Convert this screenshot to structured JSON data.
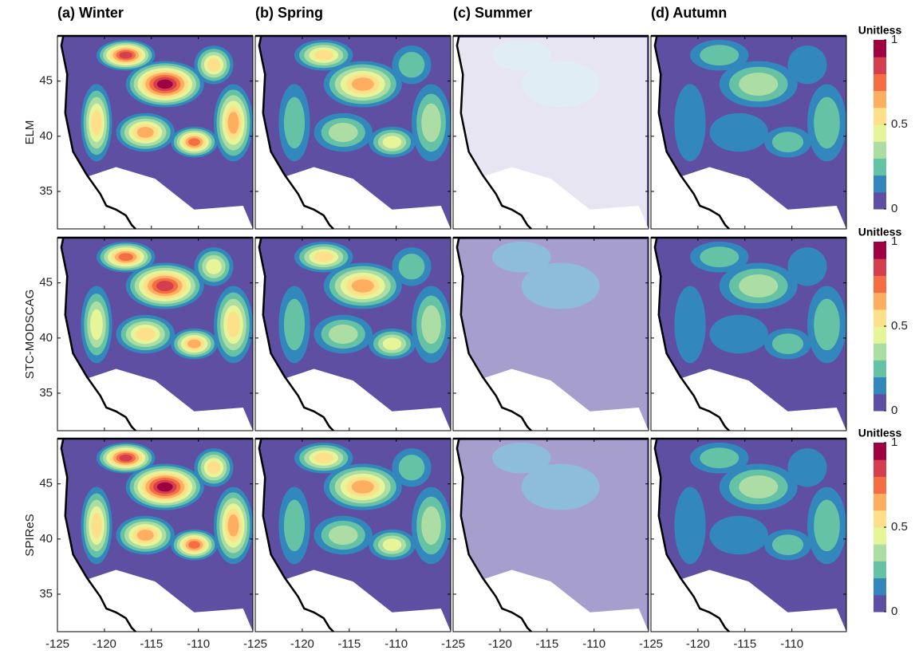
{
  "columns": [
    "(a) Winter",
    "(b) Spring",
    "(c) Summer",
    "(d) Autumn"
  ],
  "rows": [
    "ELM",
    "STC-MODSCAG",
    "SPIReS"
  ],
  "x_axis": {
    "xlim": [
      -125,
      -104.2
    ],
    "xticks": [
      -125,
      -120,
      -115,
      -110
    ]
  },
  "y_axis": {
    "ylim": [
      31.6,
      49.1
    ],
    "yticks": [
      35,
      40,
      45
    ]
  },
  "colorbar": {
    "label": "Unitless",
    "lim": [
      0,
      1
    ],
    "ticks": [
      0,
      0.5,
      1
    ],
    "colors": [
      "#5e4fa2",
      "#3288bd",
      "#66c2a5",
      "#abdda4",
      "#e6f598",
      "#fee08b",
      "#fdae61",
      "#f46d43",
      "#d53e4f",
      "#9e0142"
    ]
  }
}
